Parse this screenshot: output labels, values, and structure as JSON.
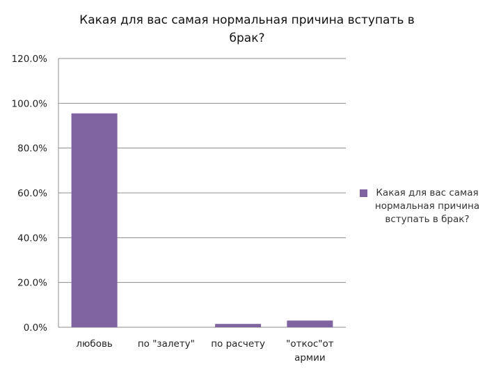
{
  "chart_data": {
    "type": "bar",
    "title": "Какая для вас самая нормальная причина вступать в брак?",
    "categories": [
      "любовь",
      "по \"залету\"",
      "по расчету",
      "\"откос\"от армии"
    ],
    "series": [
      {
        "name": "Какая для вас самая нормальная причина вступать в брак?",
        "values": [
          95.5,
          0.0,
          1.5,
          3.0
        ],
        "color": "#8064a2"
      }
    ],
    "yticks": [
      "0.0%",
      "20.0%",
      "40.0%",
      "60.0%",
      "80.0%",
      "100.0%",
      "120.0%"
    ],
    "ylim": [
      0,
      120
    ],
    "grid": true,
    "legend_position": "right"
  }
}
